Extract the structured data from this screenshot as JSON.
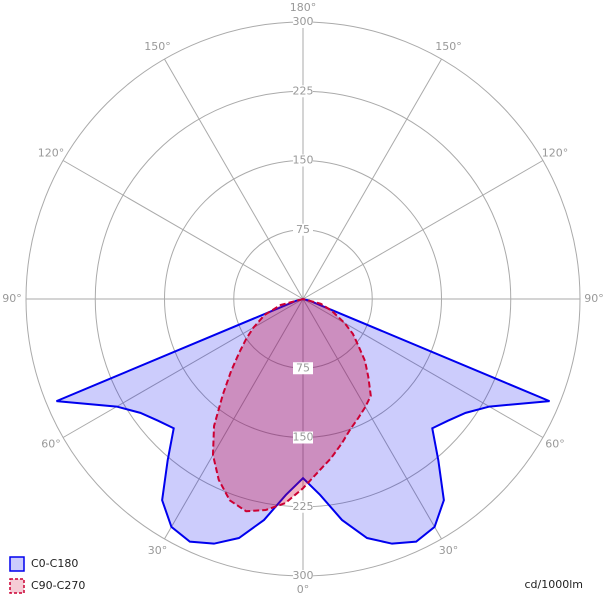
{
  "chart_data": {
    "type": "polar",
    "rlim": [
      0,
      300
    ],
    "rticks": [
      75,
      150,
      225,
      300
    ],
    "angle_ticks": [
      {
        "value": 0,
        "label": "0°"
      },
      {
        "value": 30,
        "label": "30°"
      },
      {
        "value": 60,
        "label": "60°"
      },
      {
        "value": 90,
        "label": "90°"
      },
      {
        "value": 120,
        "label": "120°"
      },
      {
        "value": 150,
        "label": "150°"
      },
      {
        "value": 180,
        "label": "180°"
      }
    ],
    "angles": [
      -90,
      -75,
      -67.5,
      -60,
      -55,
      -50,
      -45,
      -40,
      -35,
      -30,
      -25,
      -20,
      -15,
      -10,
      -5,
      0,
      5,
      10,
      15,
      20,
      25,
      30,
      35,
      40,
      45,
      50,
      55,
      60,
      67.5,
      75,
      90
    ],
    "series": [
      {
        "name": "C0-C180",
        "color": "#0000ee",
        "dashed": false,
        "values": [
          0,
          8,
          289,
          233,
          215,
          205,
          198,
          228,
          266,
          285,
          290,
          282,
          268,
          243,
          213,
          194,
          213,
          243,
          268,
          282,
          290,
          285,
          266,
          228,
          198,
          205,
          215,
          233,
          289,
          8,
          0
        ]
      },
      {
        "name": "C90-C270",
        "color": "#cc0033",
        "dashed": true,
        "values": [
          0,
          25,
          45,
          62,
          75,
          90,
          110,
          135,
          168,
          195,
          216,
          232,
          238,
          232,
          222,
          205,
          188,
          175,
          162,
          150,
          142,
          135,
          128,
          110,
          95,
          78,
          66,
          52,
          34,
          20,
          0
        ]
      }
    ],
    "unit": "cd/1000lm"
  }
}
